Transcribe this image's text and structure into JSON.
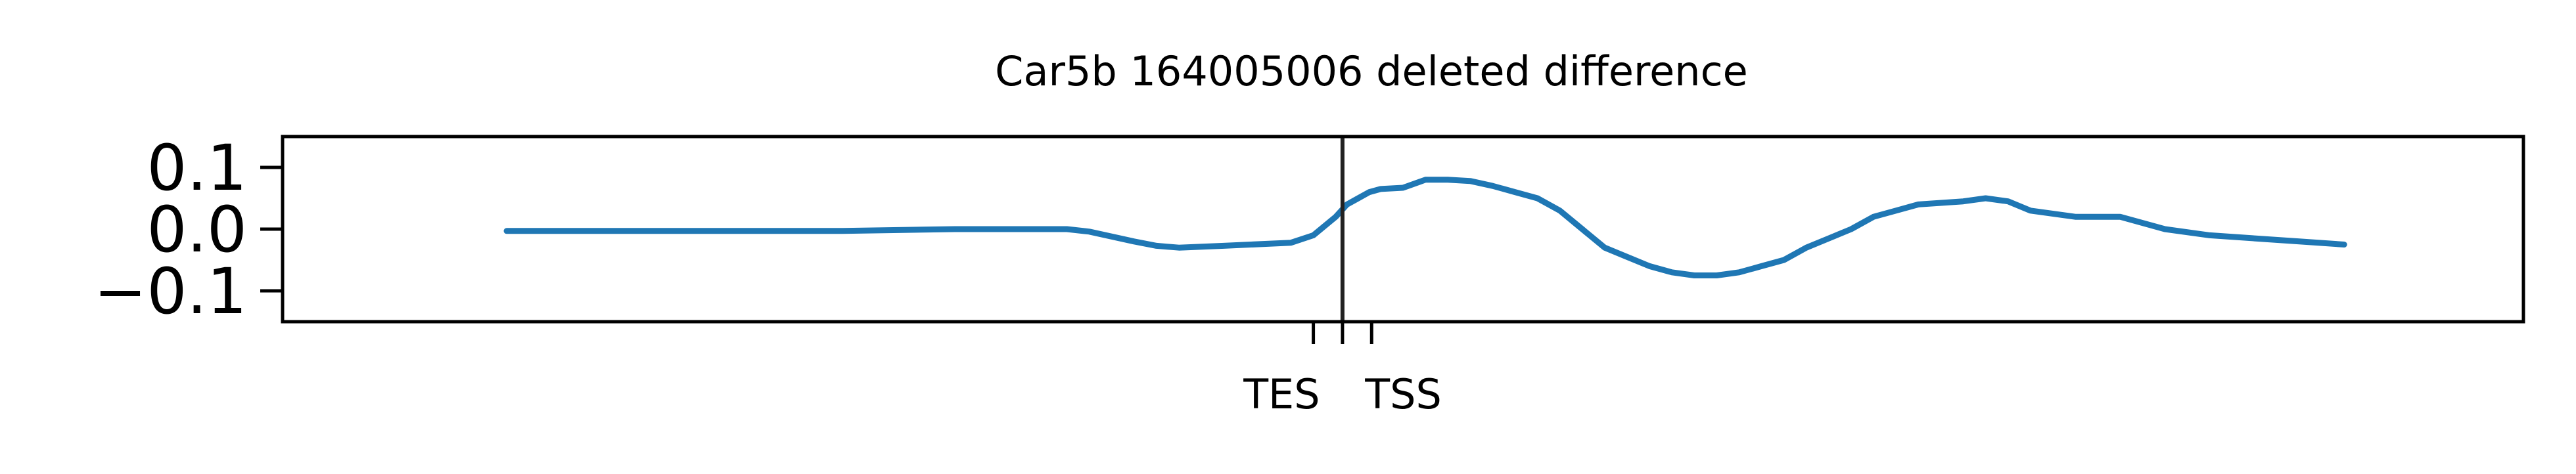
{
  "chart_data": {
    "type": "line",
    "title": "Car5b 164005006 deleted difference",
    "xlabel": "",
    "ylabel": "",
    "ylim": [
      -0.15,
      0.15
    ],
    "yticks": [
      {
        "value": 0.1,
        "label": "0.1"
      },
      {
        "value": 0.0,
        "label": "0.0"
      },
      {
        "value": -0.1,
        "label": "−0.1"
      }
    ],
    "xlim": [
      0,
      1000
    ],
    "xticks": [
      {
        "value": 460,
        "label": "TES"
      },
      {
        "value": 473,
        "label": ""
      },
      {
        "value": 486,
        "label": "TSS"
      }
    ],
    "vline_x": 473,
    "grid": false,
    "series": [
      {
        "color": "#1f77b4",
        "x": [
          100,
          200,
          250,
          300,
          330,
          350,
          360,
          380,
          390,
          400,
          420,
          450,
          460,
          470,
          475,
          480,
          485,
          490,
          500,
          510,
          520,
          530,
          540,
          550,
          560,
          570,
          580,
          590,
          600,
          610,
          620,
          630,
          640,
          650,
          660,
          670,
          680,
          690,
          700,
          710,
          720,
          730,
          750,
          760,
          770,
          780,
          800,
          820,
          840,
          860,
          880,
          900,
          920
        ],
        "y": [
          -0.003,
          -0.003,
          -0.003,
          0.0,
          0.0,
          0.0,
          -0.004,
          -0.02,
          -0.027,
          -0.03,
          -0.027,
          -0.022,
          -0.01,
          0.02,
          0.04,
          0.05,
          0.06,
          0.065,
          0.067,
          0.08,
          0.08,
          0.078,
          0.07,
          0.06,
          0.05,
          0.03,
          0.0,
          -0.03,
          -0.045,
          -0.06,
          -0.07,
          -0.075,
          -0.075,
          -0.07,
          -0.06,
          -0.05,
          -0.03,
          -0.015,
          0.0,
          0.02,
          0.03,
          0.04,
          0.045,
          0.05,
          0.045,
          0.03,
          0.02,
          0.02,
          0.0,
          -0.01,
          -0.015,
          -0.02,
          -0.025
        ]
      }
    ]
  }
}
